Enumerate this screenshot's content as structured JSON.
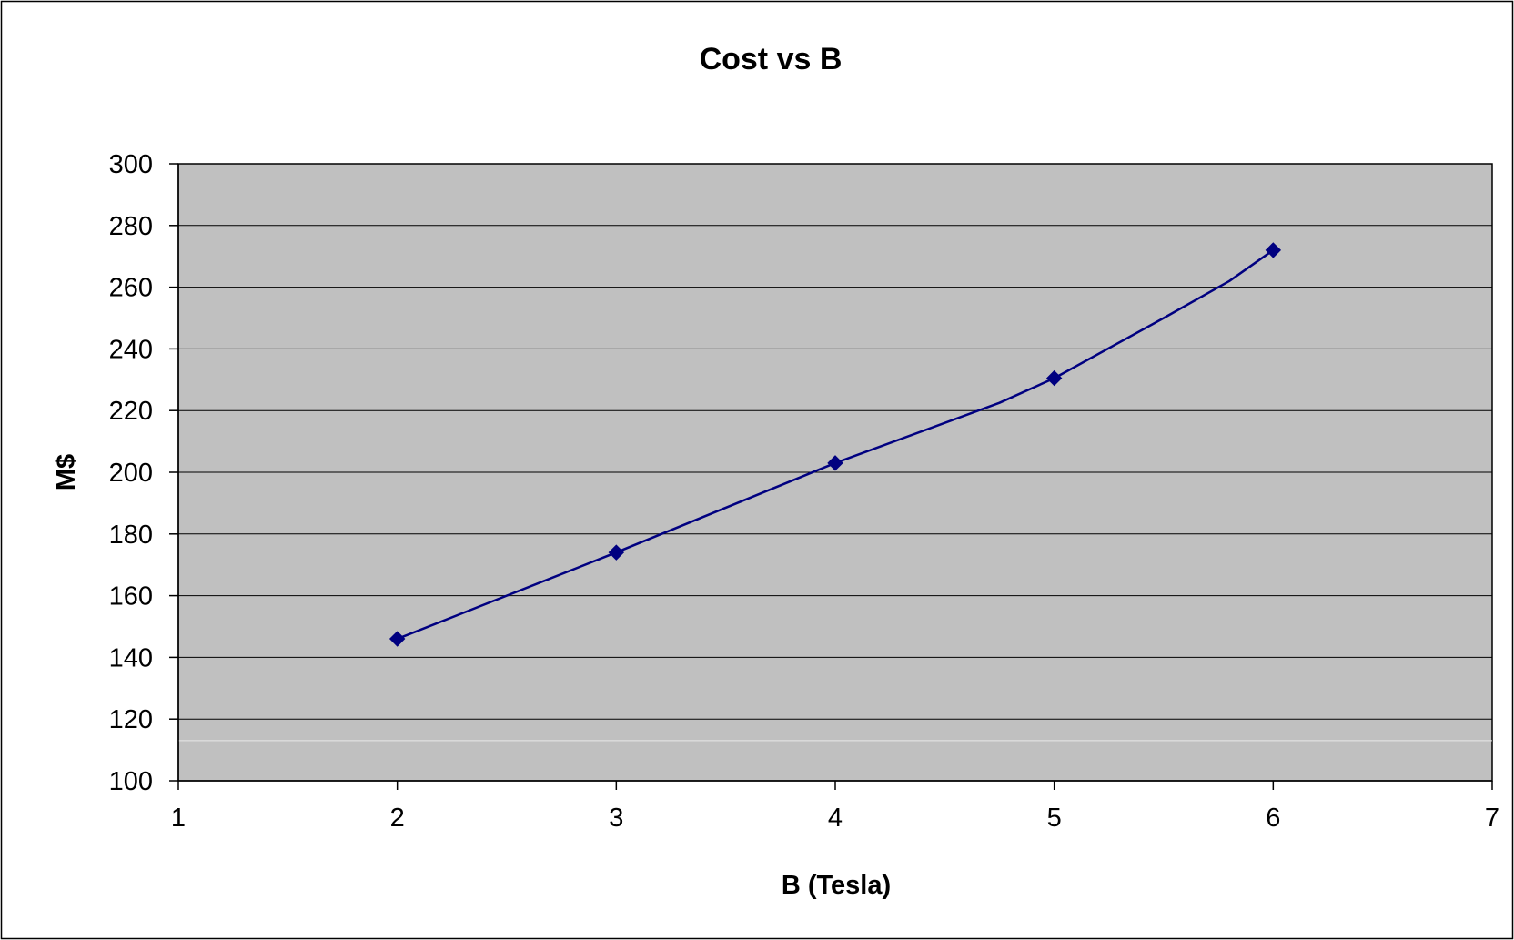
{
  "chart_data": {
    "type": "line",
    "title": "Cost vs B",
    "xlabel": "B (Tesla)",
    "ylabel": "M$",
    "xlim": [
      1,
      7
    ],
    "ylim": [
      100,
      300
    ],
    "x_ticks": [
      "1",
      "2",
      "3",
      "4",
      "5",
      "6",
      "7"
    ],
    "y_ticks": [
      "100",
      "120",
      "140",
      "160",
      "180",
      "200",
      "220",
      "240",
      "260",
      "280",
      "300"
    ],
    "grid": "horizontal",
    "legend": "none",
    "series": [
      {
        "x": [
          2,
          3,
          4,
          5,
          6
        ],
        "y": [
          146,
          174,
          203,
          230.5,
          272
        ],
        "curve_x": [
          2,
          3,
          4,
          4.75,
          5,
          5.5,
          5.8,
          6
        ],
        "curve_y": [
          146,
          174,
          203,
          222.5,
          230.5,
          250,
          262,
          272
        ],
        "color": "#000080",
        "marker": "diamond"
      }
    ],
    "colors": {
      "plot_background": "#c0c0c0",
      "gridline": "#000000",
      "series_line": "#000080"
    }
  }
}
